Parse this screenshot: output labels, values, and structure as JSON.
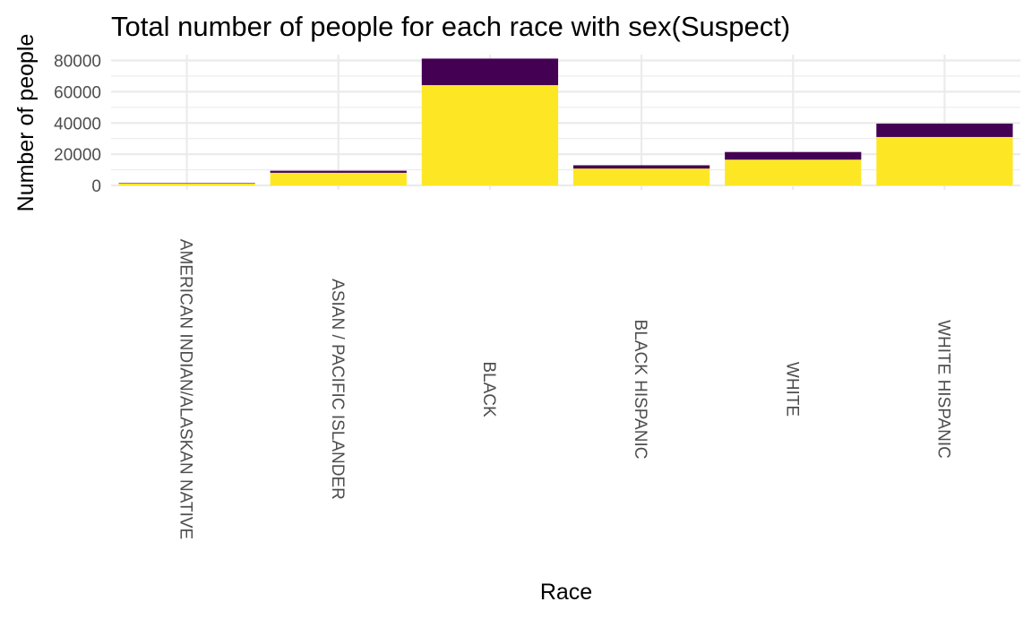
{
  "chart_data": {
    "type": "bar",
    "stacked": true,
    "title": "Total number of people for each race with sex(Suspect)",
    "xlabel": "Race",
    "ylabel": "Number of people",
    "categories": [
      "AMERICAN INDIAN/ALASKAN NATIVE",
      "ASIAN / PACIFIC ISLANDER",
      "BLACK",
      "BLACK HISPANIC",
      "WHITE",
      "WHITE HISPANIC"
    ],
    "series": [
      {
        "color": "#fde725",
        "values": [
          1300,
          8100,
          64200,
          10800,
          16500,
          31000
        ]
      },
      {
        "color": "#440154",
        "values": [
          300,
          1300,
          17000,
          2100,
          4900,
          8600
        ]
      }
    ],
    "ylim": [
      0,
      81000
    ],
    "yticks": [
      0,
      20000,
      40000,
      60000,
      80000
    ],
    "ytick_labels": [
      "0",
      "20000",
      "40000",
      "60000",
      "80000"
    ],
    "grid": true,
    "legend": "none"
  }
}
